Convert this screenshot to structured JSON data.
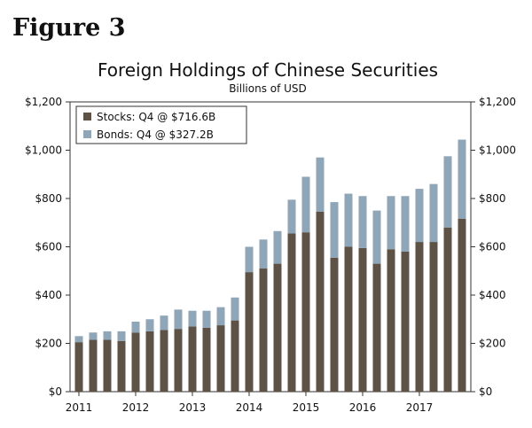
{
  "figure_label": "Figure 3",
  "chart_data": {
    "type": "bar",
    "stacked": true,
    "title": "Foreign Holdings of Chinese Securities",
    "subtitle": "Billions of USD",
    "xlabel": "",
    "ylabel": "",
    "ylim": [
      0,
      1200
    ],
    "yticks": [
      0,
      200,
      400,
      600,
      800,
      1000,
      1200
    ],
    "ytick_labels": [
      "$0",
      "$200",
      "$400",
      "$600",
      "$800",
      "$1,000",
      "$1,200"
    ],
    "x_tick_labels": [
      "2011",
      "2012",
      "2013",
      "2014",
      "2015",
      "2016",
      "2017"
    ],
    "categories": [
      "2011Q1",
      "2011Q2",
      "2011Q3",
      "2011Q4",
      "2012Q1",
      "2012Q2",
      "2012Q3",
      "2012Q4",
      "2013Q1",
      "2013Q2",
      "2013Q3",
      "2013Q4",
      "2014Q1",
      "2014Q2",
      "2014Q3",
      "2014Q4",
      "2015Q1",
      "2015Q2",
      "2015Q3",
      "2015Q4",
      "2016Q1",
      "2016Q2",
      "2016Q3",
      "2016Q4",
      "2017Q1",
      "2017Q2",
      "2017Q3",
      "2017Q4"
    ],
    "legend_position": "top-left",
    "grid": false,
    "series": [
      {
        "name": "Stocks: Q4 @ $716.6B",
        "color": "#5e5246",
        "values": [
          205,
          215,
          215,
          210,
          245,
          250,
          255,
          260,
          270,
          265,
          275,
          295,
          495,
          510,
          530,
          655,
          660,
          745,
          555,
          600,
          595,
          530,
          590,
          580,
          620,
          620,
          680,
          716.6
        ]
      },
      {
        "name": "Bonds: Q4 @ $327.2B",
        "color": "#8fa6b8",
        "values": [
          25,
          30,
          35,
          40,
          45,
          50,
          60,
          80,
          65,
          70,
          75,
          95,
          105,
          120,
          135,
          140,
          230,
          225,
          230,
          220,
          215,
          220,
          220,
          230,
          220,
          240,
          295,
          327.2
        ]
      }
    ]
  }
}
